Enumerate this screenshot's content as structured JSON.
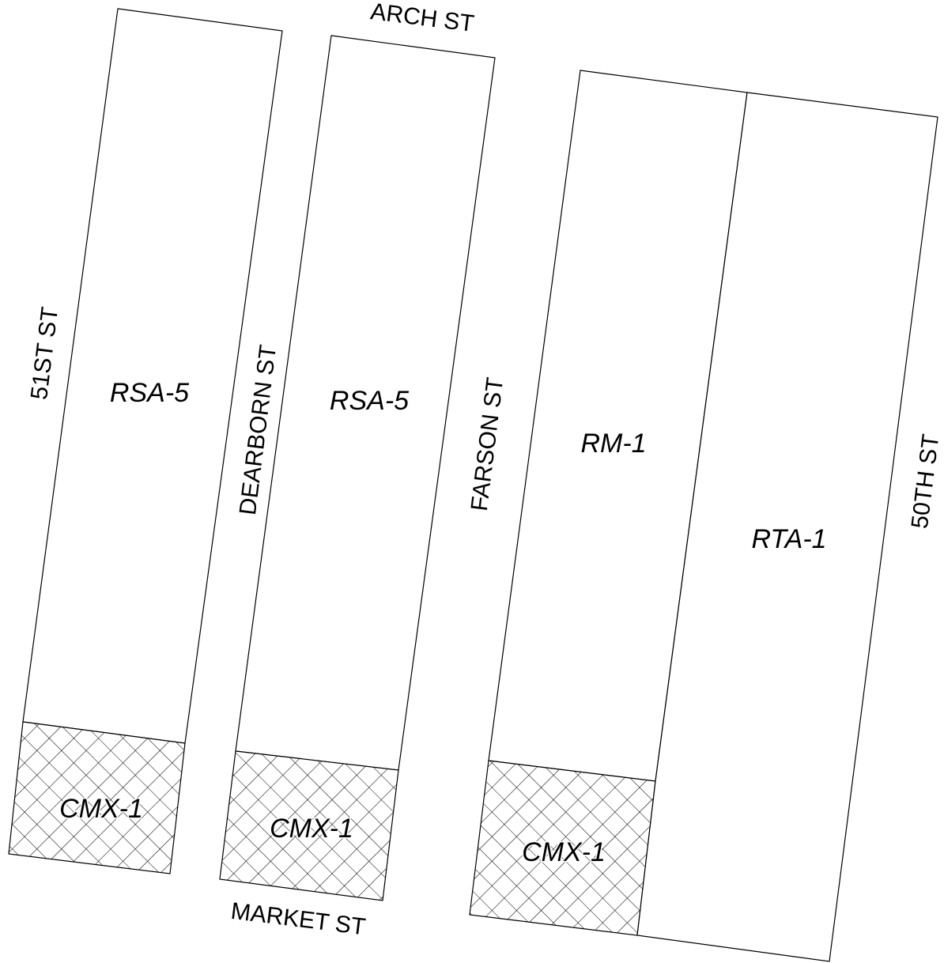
{
  "streets": {
    "arch": "ARCH ST",
    "market": "MARKET ST",
    "st51": "51ST ST",
    "dearborn": "DEARBORN ST",
    "farson": "FARSON ST",
    "th50": "50TH ST"
  },
  "zones": {
    "block1_upper": "RSA-5",
    "block1_lower": "CMX-1",
    "block2_upper": "RSA-5",
    "block2_lower": "CMX-1",
    "block3_west_upper": "RM-1",
    "block3_west_lower": "CMX-1",
    "block3_east": "RTA-1"
  },
  "legend_colors": {
    "boundary": "#000000",
    "background": "#ffffff",
    "hatch": "#000000"
  }
}
